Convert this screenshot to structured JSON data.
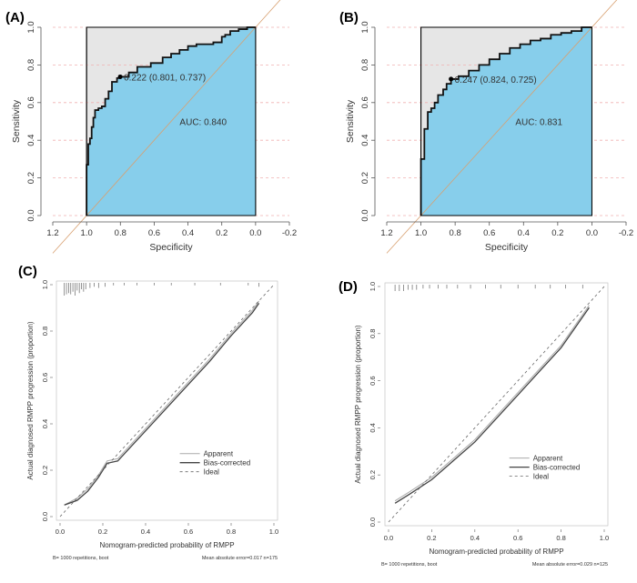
{
  "panels": [
    {
      "id": "A",
      "label": "(A)"
    },
    {
      "id": "B",
      "label": "(B)"
    },
    {
      "id": "C",
      "label": "(C)"
    },
    {
      "id": "D",
      "label": "(D)"
    }
  ],
  "colors": {
    "auc_fill": "#87ceeb",
    "upper_fill": "#e6e6e6",
    "grid": "#f0b0b0",
    "diagonal": "#d8a070",
    "roc_line": "#111111",
    "calibration_line": "#444444"
  },
  "chart_data": [
    {
      "panel": "A",
      "type": "line",
      "subtype": "roc",
      "xlabel": "Specificity",
      "ylabel": "Sensitivity",
      "xlim": [
        1.2,
        -0.2
      ],
      "ylim": [
        0,
        1
      ],
      "x_ticks": [
        "1.2",
        "1.0",
        "0.8",
        "0.6",
        "0.4",
        "0.2",
        "0.0",
        "-0.2"
      ],
      "y_ticks": [
        "0.0",
        "0.2",
        "0.4",
        "0.6",
        "0.8",
        "1.0"
      ],
      "x_tick_values": [
        1.2,
        1.0,
        0.8,
        0.6,
        0.4,
        0.2,
        0.0,
        -0.2
      ],
      "y_tick_values": [
        0,
        0.2,
        0.4,
        0.6,
        0.8,
        1.0
      ],
      "grid": "horizontal",
      "threshold_point": {
        "specificity": 0.801,
        "sensitivity": 0.737,
        "text": "0.222 (0.801, 0.737)"
      },
      "auc_text": "AUC: 0.840",
      "specificity": [
        1.0,
        1.0,
        0.99,
        0.98,
        0.97,
        0.96,
        0.95,
        0.93,
        0.91,
        0.89,
        0.87,
        0.85,
        0.82,
        0.801,
        0.75,
        0.7,
        0.62,
        0.55,
        0.5,
        0.45,
        0.4,
        0.35,
        0.3,
        0.25,
        0.2,
        0.18,
        0.15,
        0.1,
        0.05,
        0.0
      ],
      "sensitivity": [
        0.0,
        0.27,
        0.38,
        0.41,
        0.47,
        0.52,
        0.56,
        0.57,
        0.58,
        0.62,
        0.66,
        0.71,
        0.73,
        0.737,
        0.76,
        0.79,
        0.81,
        0.84,
        0.86,
        0.88,
        0.9,
        0.91,
        0.91,
        0.92,
        0.95,
        0.96,
        0.98,
        0.99,
        1.0,
        1.0
      ]
    },
    {
      "panel": "B",
      "type": "line",
      "subtype": "roc",
      "xlabel": "Specificity",
      "ylabel": "Sensitivity",
      "xlim": [
        1.2,
        -0.2
      ],
      "ylim": [
        0,
        1
      ],
      "x_ticks": [
        "1.2",
        "1.0",
        "0.8",
        "0.6",
        "0.4",
        "0.2",
        "0.0",
        "-0.2"
      ],
      "y_ticks": [
        "0.0",
        "0.2",
        "0.4",
        "0.6",
        "0.8",
        "1.0"
      ],
      "x_tick_values": [
        1.2,
        1.0,
        0.8,
        0.6,
        0.4,
        0.2,
        0.0,
        -0.2
      ],
      "y_tick_values": [
        0,
        0.2,
        0.4,
        0.6,
        0.8,
        1.0
      ],
      "grid": "horizontal",
      "threshold_point": {
        "specificity": 0.824,
        "sensitivity": 0.725,
        "text": "0.247 (0.824, 0.725)"
      },
      "auc_text": "AUC: 0.831",
      "specificity": [
        1.0,
        1.0,
        0.98,
        0.96,
        0.94,
        0.92,
        0.9,
        0.87,
        0.85,
        0.824,
        0.78,
        0.72,
        0.66,
        0.6,
        0.54,
        0.48,
        0.42,
        0.36,
        0.3,
        0.24,
        0.18,
        0.12,
        0.06,
        0.0
      ],
      "sensitivity": [
        0.0,
        0.3,
        0.46,
        0.55,
        0.57,
        0.6,
        0.64,
        0.67,
        0.7,
        0.725,
        0.74,
        0.77,
        0.8,
        0.83,
        0.86,
        0.89,
        0.91,
        0.93,
        0.94,
        0.96,
        0.97,
        0.98,
        1.0,
        1.0
      ]
    },
    {
      "panel": "C",
      "type": "line",
      "subtype": "calibration",
      "xlabel": "Nomogram-predicted probability of RMPP",
      "ylabel": "Actual diagnosed RMPP progression (proportion)",
      "xlim": [
        0,
        1
      ],
      "ylim": [
        0,
        1
      ],
      "x_ticks": [
        "0.0",
        "0.2",
        "0.4",
        "0.6",
        "0.8",
        "1.0"
      ],
      "y_ticks": [
        "0.0",
        "0.2",
        "0.4",
        "0.6",
        "0.8",
        "1.0"
      ],
      "tick_values": [
        0,
        0.2,
        0.4,
        0.6,
        0.8,
        1.0
      ],
      "legend": [
        "Apparent",
        "Bias-corrected",
        "Ideal"
      ],
      "legend_position": "center-right",
      "footer_left": "B= 1000 repetitions, boot",
      "footer_right": "Mean absolute error=0.017 n=175",
      "rug_x": [
        0.02,
        0.03,
        0.04,
        0.05,
        0.06,
        0.07,
        0.08,
        0.09,
        0.1,
        0.11,
        0.12,
        0.14,
        0.16,
        0.18,
        0.21,
        0.25,
        0.3,
        0.36,
        0.44,
        0.52,
        0.63,
        0.75,
        0.88,
        0.93
      ],
      "rug_heights": [
        1.0,
        0.9,
        0.8,
        0.9,
        0.7,
        1.0,
        0.6,
        0.8,
        0.5,
        0.7,
        0.5,
        0.4,
        0.3,
        0.4,
        0.3,
        0.2,
        0.2,
        0.2,
        0.2,
        0.2,
        0.2,
        0.2,
        0.2,
        0.3
      ],
      "series": [
        {
          "name": "Apparent",
          "x": [
            0.02,
            0.08,
            0.13,
            0.18,
            0.22,
            0.27,
            0.31,
            0.4,
            0.5,
            0.6,
            0.7,
            0.8,
            0.9,
            0.93
          ],
          "y": [
            0.05,
            0.08,
            0.12,
            0.18,
            0.24,
            0.25,
            0.29,
            0.38,
            0.48,
            0.58,
            0.68,
            0.79,
            0.89,
            0.93
          ]
        },
        {
          "name": "Bias-corrected",
          "x": [
            0.02,
            0.08,
            0.13,
            0.18,
            0.22,
            0.27,
            0.31,
            0.4,
            0.5,
            0.6,
            0.7,
            0.8,
            0.9,
            0.93
          ],
          "y": [
            0.05,
            0.07,
            0.11,
            0.17,
            0.23,
            0.24,
            0.28,
            0.37,
            0.47,
            0.57,
            0.67,
            0.78,
            0.88,
            0.92
          ]
        },
        {
          "name": "Ideal",
          "x": [
            0,
            1
          ],
          "y": [
            0,
            1
          ]
        }
      ]
    },
    {
      "panel": "D",
      "type": "line",
      "subtype": "calibration",
      "xlabel": "Nomogram-predicted probability of RMPP",
      "ylabel": "Actual diagnosed RMPP progression (proportion)",
      "xlim": [
        0,
        1
      ],
      "ylim": [
        0,
        1
      ],
      "x_ticks": [
        "0.0",
        "0.2",
        "0.4",
        "0.6",
        "0.8",
        "1.0"
      ],
      "y_ticks": [
        "0.0",
        "0.2",
        "0.4",
        "0.6",
        "0.8",
        "1.0"
      ],
      "tick_values": [
        0,
        0.2,
        0.4,
        0.6,
        0.8,
        1.0
      ],
      "legend": [
        "Apparent",
        "Bias-corrected",
        "Ideal"
      ],
      "legend_position": "center-right",
      "footer_left": "B= 1000 repetitions, boot",
      "footer_right": "Mean absolute error=0.029 n=125",
      "rug_x": [
        0.03,
        0.05,
        0.07,
        0.09,
        0.11,
        0.13,
        0.16,
        0.19,
        0.23,
        0.27,
        0.32,
        0.38,
        0.45,
        0.52,
        0.6,
        0.68,
        0.75,
        0.82,
        0.9
      ],
      "rug_heights": [
        0.5,
        0.5,
        0.5,
        0.4,
        0.4,
        0.4,
        0.3,
        0.3,
        0.3,
        0.3,
        0.3,
        0.3,
        0.3,
        0.3,
        0.3,
        0.3,
        0.3,
        0.3,
        0.3
      ],
      "series": [
        {
          "name": "Apparent",
          "x": [
            0.03,
            0.1,
            0.2,
            0.3,
            0.4,
            0.5,
            0.6,
            0.7,
            0.8,
            0.93
          ],
          "y": [
            0.09,
            0.13,
            0.19,
            0.27,
            0.35,
            0.45,
            0.55,
            0.65,
            0.75,
            0.92
          ]
        },
        {
          "name": "Bias-corrected",
          "x": [
            0.03,
            0.1,
            0.2,
            0.3,
            0.4,
            0.5,
            0.6,
            0.7,
            0.8,
            0.93
          ],
          "y": [
            0.08,
            0.12,
            0.18,
            0.26,
            0.34,
            0.44,
            0.54,
            0.64,
            0.74,
            0.91
          ]
        },
        {
          "name": "Ideal",
          "x": [
            0,
            1
          ],
          "y": [
            0,
            1
          ]
        }
      ]
    }
  ]
}
